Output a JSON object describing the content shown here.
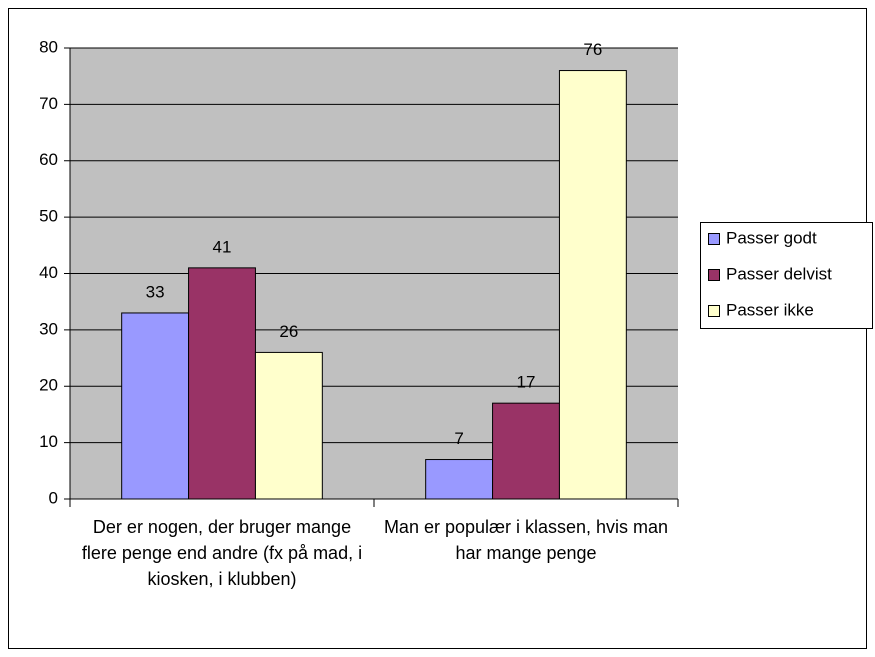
{
  "chart_data": {
    "type": "bar",
    "categories": [
      "Der er nogen, der bruger mange flere penge end andre (fx på mad, i kiosken, i klubben)",
      "Man er populær i klassen, hvis man har mange penge"
    ],
    "series": [
      {
        "name": "Passer godt",
        "color": "#9999ff",
        "values": [
          33,
          7
        ]
      },
      {
        "name": "Passer delvist",
        "color": "#993366",
        "values": [
          41,
          17
        ]
      },
      {
        "name": "Passer ikke",
        "color": "#ffffcc",
        "values": [
          26,
          76
        ]
      }
    ],
    "ylim": [
      0,
      80
    ],
    "yticks": [
      0,
      10,
      20,
      30,
      40,
      50,
      60,
      70,
      80
    ],
    "grid": true,
    "legend": "right",
    "plot_background": "#c0c0c0"
  }
}
